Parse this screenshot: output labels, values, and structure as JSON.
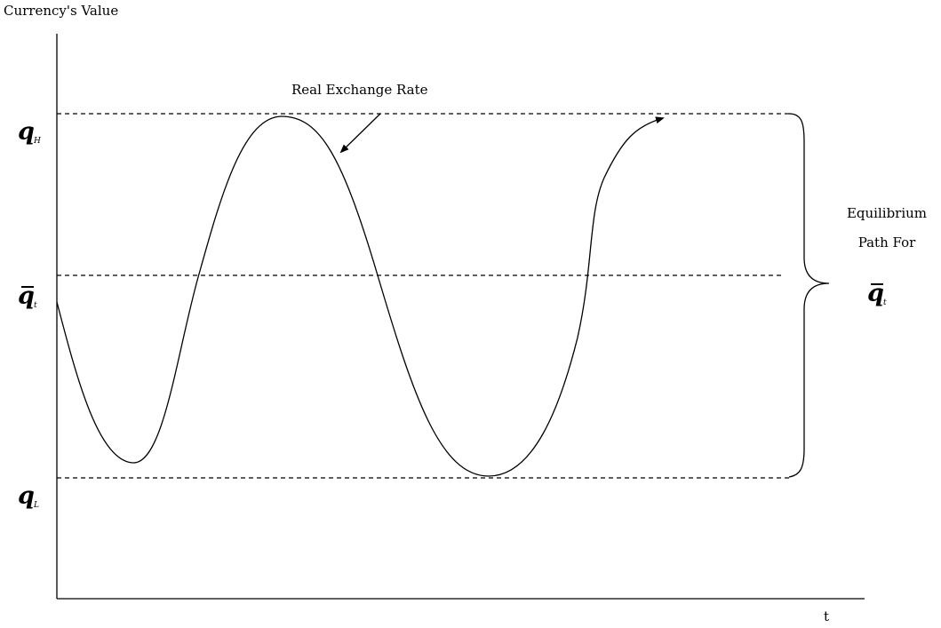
{
  "y_axis_label": "Currency's Value",
  "x_axis_label": "t",
  "levels": {
    "high": {
      "symbol": "q",
      "subscript": "H"
    },
    "equilibrium": {
      "symbol": "q",
      "subscript": "t",
      "bar": true
    },
    "low": {
      "symbol": "q",
      "subscript": "L"
    }
  },
  "curve_label": "Real Exchange Rate",
  "brace_label": {
    "line1": "Equilibrium",
    "line2": "Path For",
    "symbol": "q",
    "subscript": "t"
  }
}
